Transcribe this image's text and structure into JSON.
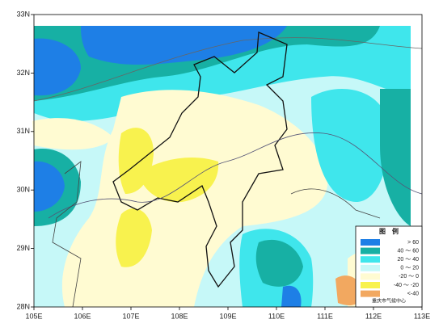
{
  "map": {
    "lonlim": [
      105,
      113
    ],
    "latlim": [
      28,
      33
    ],
    "lon_ticks": [
      {
        "value": 105,
        "label": "105E"
      },
      {
        "value": 106,
        "label": "106E"
      },
      {
        "value": 107,
        "label": "107E"
      },
      {
        "value": 108,
        "label": "108E"
      },
      {
        "value": 109,
        "label": "109E"
      },
      {
        "value": 110,
        "label": "110E"
      },
      {
        "value": 111,
        "label": "111E"
      },
      {
        "value": 112,
        "label": "112E"
      },
      {
        "value": 113,
        "label": "113E"
      }
    ],
    "lat_ticks": [
      {
        "value": 28,
        "label": "28N"
      },
      {
        "value": 29,
        "label": "29N"
      },
      {
        "value": 30,
        "label": "30N"
      },
      {
        "value": 31,
        "label": "31N"
      },
      {
        "value": 32,
        "label": "32N"
      },
      {
        "value": 33,
        "label": "33N"
      }
    ],
    "legend": {
      "title": "图　例",
      "items": [
        {
          "label": "> 60",
          "color": "#1e7fe6"
        },
        {
          "label": "40 ～ 60",
          "color": "#17b0a4"
        },
        {
          "label": "20 ～ 40",
          "color": "#3fe6ec"
        },
        {
          "label": "0 ～ 20",
          "color": "#c6f8f8"
        },
        {
          "label": "-20 ～ 0",
          "color": "#fffbd2"
        },
        {
          "label": "-40 ～ -20",
          "color": "#f8f24e"
        },
        {
          "label": "<-40",
          "color": "#f2a860"
        }
      ],
      "source": "重庆市气候中心"
    }
  }
}
